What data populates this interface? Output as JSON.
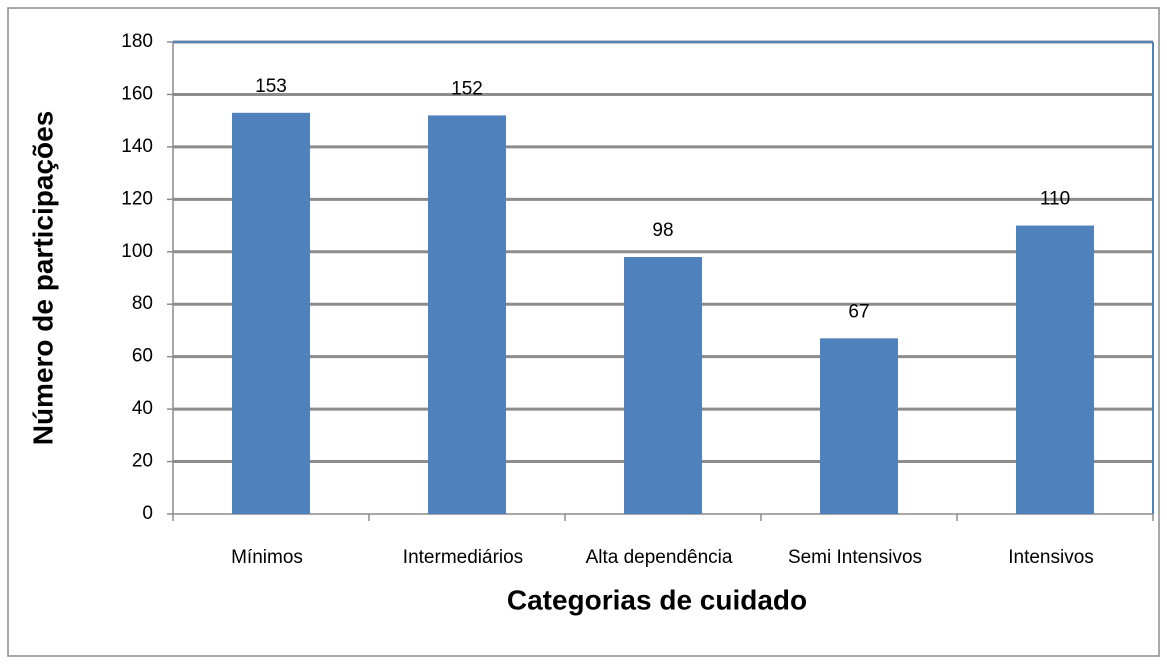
{
  "chart_data": {
    "type": "bar",
    "categories": [
      "Mínimos",
      "Intermediários",
      "Alta dependência",
      "Semi Intensivos",
      "Intensivos"
    ],
    "values": [
      153,
      152,
      98,
      67,
      110
    ],
    "color": "#4f81bd",
    "xlabel": "Categorias de cuidado",
    "ylabel": "Número de participações",
    "ylim": [
      0,
      180
    ],
    "yticks": [
      0,
      20,
      40,
      60,
      80,
      100,
      120,
      140,
      160,
      180
    ],
    "grid": true
  }
}
